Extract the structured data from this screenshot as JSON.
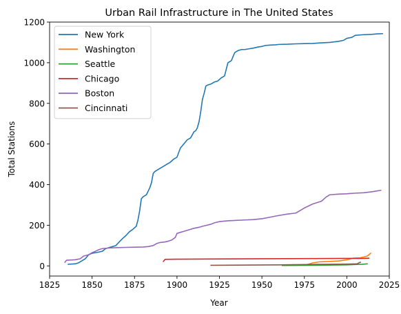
{
  "chart_data": {
    "type": "line",
    "title": "Urban Rail Infrastructure in The United States",
    "xlabel": "Year",
    "ylabel": "Total Stations",
    "xlim": [
      1825,
      2025
    ],
    "ylim": [
      -50,
      1200
    ],
    "xticks": [
      1825,
      1850,
      1875,
      1900,
      1925,
      1950,
      1975,
      2000,
      2025
    ],
    "yticks": [
      0,
      200,
      400,
      600,
      800,
      1000,
      1200
    ],
    "grid": false,
    "legend_position": "top-left",
    "series": [
      {
        "name": "New York",
        "color": "#1f77b4",
        "x": [
          1836,
          1840,
          1842,
          1844,
          1846,
          1848,
          1850,
          1852,
          1854,
          1856,
          1858,
          1860,
          1862,
          1864,
          1866,
          1868,
          1870,
          1872,
          1874,
          1876,
          1877,
          1878,
          1879,
          1880,
          1882,
          1884,
          1885,
          1886,
          1887,
          1888,
          1890,
          1892,
          1894,
          1896,
          1898,
          1900,
          1902,
          1903,
          1904,
          1906,
          1908,
          1910,
          1911,
          1912,
          1913,
          1914,
          1915,
          1916,
          1917,
          1918,
          1920,
          1922,
          1924,
          1926,
          1928,
          1930,
          1932,
          1934,
          1936,
          1938,
          1940,
          1942,
          1945,
          1948,
          1950,
          1952,
          1955,
          1958,
          1960,
          1965,
          1970,
          1975,
          1980,
          1985,
          1990,
          1995,
          1998,
          2000,
          2003,
          2005,
          2010,
          2015,
          2018,
          2021
        ],
        "values": [
          8,
          10,
          15,
          25,
          35,
          55,
          62,
          65,
          68,
          72,
          85,
          90,
          95,
          100,
          118,
          135,
          150,
          168,
          180,
          195,
          225,
          270,
          330,
          340,
          350,
          385,
          410,
          455,
          465,
          470,
          480,
          490,
          500,
          510,
          525,
          535,
          580,
          590,
          600,
          620,
          630,
          660,
          665,
          680,
          710,
          760,
          820,
          850,
          885,
          890,
          895,
          905,
          910,
          925,
          935,
          1000,
          1010,
          1050,
          1060,
          1065,
          1065,
          1068,
          1072,
          1078,
          1080,
          1085,
          1087,
          1088,
          1090,
          1091,
          1093,
          1094,
          1095,
          1098,
          1100,
          1105,
          1110,
          1120,
          1125,
          1135,
          1138,
          1140,
          1142,
          1143
        ]
      },
      {
        "name": "Washington",
        "color": "#ff7f0e",
        "x": [
          1976,
          1978,
          1980,
          1984,
          1990,
          1995,
          2000,
          2004,
          2008,
          2012,
          2014
        ],
        "values": [
          5,
          10,
          15,
          20,
          22,
          24,
          30,
          38,
          40,
          48,
          62
        ]
      },
      {
        "name": "Seattle",
        "color": "#2ca02c",
        "x": [
          1962,
          1980,
          2000,
          2009,
          2012
        ],
        "values": [
          2,
          3,
          5,
          8,
          10
        ]
      },
      {
        "name": "Chicago",
        "color": "#d62728",
        "x": [
          1892,
          1893,
          1900,
          1920,
          1950,
          1980,
          2000,
          2010,
          2013
        ],
        "values": [
          22,
          32,
          33,
          34,
          35,
          36,
          37,
          37,
          38
        ]
      },
      {
        "name": "Boston",
        "color": "#9467bd",
        "x": [
          1834,
          1835,
          1840,
          1843,
          1845,
          1848,
          1850,
          1852,
          1854,
          1856,
          1860,
          1865,
          1870,
          1875,
          1880,
          1883,
          1886,
          1888,
          1890,
          1893,
          1895,
          1897,
          1899,
          1900,
          1902,
          1904,
          1906,
          1908,
          1910,
          1913,
          1915,
          1920,
          1922,
          1925,
          1930,
          1935,
          1940,
          1945,
          1950,
          1955,
          1958,
          1960,
          1965,
          1970,
          1972,
          1975,
          1980,
          1985,
          1988,
          1990,
          1995,
          2000,
          2005,
          2010,
          2015,
          2020
        ],
        "values": [
          18,
          28,
          30,
          35,
          48,
          55,
          65,
          72,
          80,
          85,
          88,
          90,
          91,
          92,
          93,
          95,
          100,
          110,
          115,
          118,
          122,
          128,
          140,
          160,
          165,
          170,
          175,
          180,
          185,
          190,
          195,
          205,
          212,
          218,
          222,
          224,
          226,
          228,
          232,
          240,
          245,
          248,
          255,
          260,
          270,
          285,
          305,
          318,
          340,
          350,
          353,
          355,
          358,
          360,
          365,
          372
        ]
      },
      {
        "name": "Cincinnati",
        "color": "#8c564b",
        "x": [
          1920,
          1960,
          1980,
          2000,
          2006,
          2008
        ],
        "values": [
          3,
          5,
          7,
          9,
          10,
          18
        ]
      }
    ]
  }
}
